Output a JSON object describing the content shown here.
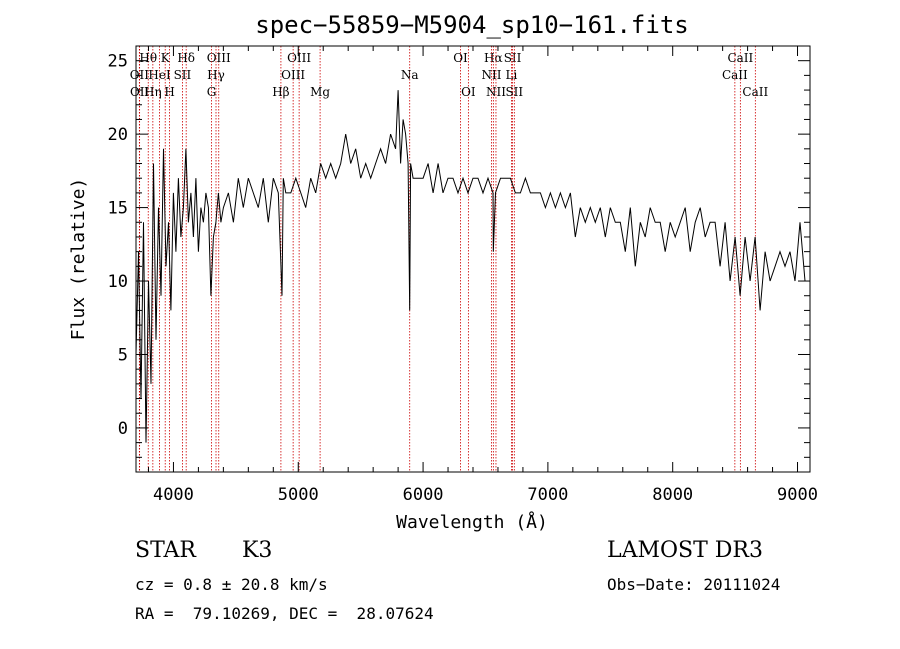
{
  "chart_data": {
    "type": "line",
    "title": "spec−55859−M5904_sp10−161.fits",
    "xlabel": "Wavelength (Å)",
    "ylabel": "Flux (relative)",
    "xlim": [
      3700,
      9100
    ],
    "ylim": [
      -3,
      26
    ],
    "xticks": [
      4000,
      5000,
      6000,
      7000,
      8000,
      9000
    ],
    "yticks": [
      0,
      5,
      10,
      15,
      20,
      25
    ],
    "series": [
      {
        "name": "flux",
        "x": [
          3700,
          3720,
          3740,
          3760,
          3780,
          3800,
          3820,
          3840,
          3860,
          3880,
          3900,
          3920,
          3940,
          3960,
          3980,
          4000,
          4020,
          4040,
          4060,
          4080,
          4100,
          4120,
          4140,
          4160,
          4180,
          4200,
          4220,
          4240,
          4260,
          4280,
          4300,
          4320,
          4340,
          4360,
          4380,
          4400,
          4440,
          4480,
          4520,
          4560,
          4600,
          4640,
          4680,
          4720,
          4760,
          4800,
          4840,
          4870,
          4880,
          4900,
          4940,
          4980,
          5020,
          5060,
          5100,
          5140,
          5180,
          5220,
          5260,
          5300,
          5340,
          5380,
          5420,
          5460,
          5500,
          5540,
          5580,
          5620,
          5660,
          5700,
          5740,
          5780,
          5800,
          5820,
          5840,
          5860,
          5880,
          5893,
          5900,
          5920,
          5960,
          6000,
          6040,
          6080,
          6120,
          6160,
          6200,
          6240,
          6280,
          6320,
          6360,
          6400,
          6440,
          6480,
          6520,
          6560,
          6563,
          6580,
          6620,
          6660,
          6700,
          6740,
          6780,
          6820,
          6860,
          6900,
          6940,
          6980,
          7020,
          7060,
          7100,
          7140,
          7180,
          7220,
          7260,
          7300,
          7340,
          7380,
          7420,
          7460,
          7500,
          7540,
          7580,
          7620,
          7660,
          7700,
          7740,
          7780,
          7820,
          7860,
          7900,
          7940,
          7980,
          8020,
          8060,
          8100,
          8140,
          8180,
          8220,
          8260,
          8300,
          8340,
          8380,
          8420,
          8460,
          8500,
          8540,
          8580,
          8620,
          8660,
          8700,
          8740,
          8780,
          8820,
          8860,
          8900,
          8940,
          8980,
          9020,
          9060
        ],
        "y": [
          5,
          12,
          2,
          14,
          -1,
          10,
          3,
          18,
          6,
          15,
          9,
          19,
          11,
          14,
          8,
          16,
          12,
          17,
          13,
          15,
          19,
          14,
          16,
          13,
          17,
          12,
          15,
          14,
          16,
          15,
          9,
          13,
          14,
          16,
          14,
          15,
          16,
          14,
          17,
          15,
          17,
          16,
          15,
          17,
          14,
          17,
          16,
          9,
          17,
          16,
          16,
          17,
          16,
          15,
          17,
          16,
          18,
          17,
          18,
          17,
          18,
          20,
          18,
          19,
          17,
          18,
          17,
          18,
          19,
          18,
          20,
          19,
          23,
          18,
          21,
          20,
          18,
          8,
          18,
          17,
          17,
          17,
          18,
          16,
          18,
          16,
          17,
          17,
          16,
          17,
          16,
          17,
          17,
          16,
          17,
          16,
          12,
          16,
          17,
          17,
          17,
          16,
          16,
          17,
          16,
          16,
          16,
          15,
          16,
          15,
          16,
          15,
          16,
          13,
          15,
          14,
          15,
          14,
          15,
          13,
          15,
          14,
          14,
          12,
          15,
          11,
          14,
          13,
          15,
          14,
          14,
          12,
          14,
          13,
          14,
          15,
          12,
          14,
          15,
          13,
          14,
          14,
          11,
          14,
          10,
          13,
          9,
          13,
          10,
          13,
          8,
          12,
          10,
          11,
          12,
          11,
          12,
          10,
          14,
          10
        ]
      }
    ],
    "lines": [
      {
        "label": "Hθ",
        "wl": 3798,
        "row": 1
      },
      {
        "label": "OII",
        "wl": 3727,
        "row": 2
      },
      {
        "label": "OII",
        "wl": 3729,
        "row": 3
      },
      {
        "label": "HeI",
        "wl": 3889,
        "row": 2
      },
      {
        "label": "Hη",
        "wl": 3835,
        "row": 3
      },
      {
        "label": "K",
        "wl": 3934,
        "row": 1
      },
      {
        "label": "H",
        "wl": 3969,
        "row": 3
      },
      {
        "label": "Hδ",
        "wl": 4102,
        "row": 1
      },
      {
        "label": "SII",
        "wl": 4072,
        "row": 2
      },
      {
        "label": "OIII",
        "wl": 4363,
        "row": 1
      },
      {
        "label": "Hγ",
        "wl": 4341,
        "row": 2
      },
      {
        "label": "G",
        "wl": 4305,
        "row": 3
      },
      {
        "label": "Hβ",
        "wl": 4861,
        "row": 3
      },
      {
        "label": "OIII",
        "wl": 5007,
        "row": 1
      },
      {
        "label": "OIII",
        "wl": 4959,
        "row": 2
      },
      {
        "label": "Mg",
        "wl": 5175,
        "row": 3
      },
      {
        "label": "Na",
        "wl": 5893,
        "row": 2
      },
      {
        "label": "OI",
        "wl": 6300,
        "row": 1
      },
      {
        "label": "OI",
        "wl": 6363,
        "row": 3
      },
      {
        "label": "Hα",
        "wl": 6563,
        "row": 1
      },
      {
        "label": "NII",
        "wl": 6548,
        "row": 2
      },
      {
        "label": "NII",
        "wl": 6584,
        "row": 3
      },
      {
        "label": "SII",
        "wl": 6717,
        "row": 1
      },
      {
        "label": "Li",
        "wl": 6708,
        "row": 2
      },
      {
        "label": "SII",
        "wl": 6731,
        "row": 3
      },
      {
        "label": "CaII",
        "wl": 8542,
        "row": 1
      },
      {
        "label": "CaII",
        "wl": 8498,
        "row": 2
      },
      {
        "label": "CaII",
        "wl": 8662,
        "row": 3
      }
    ]
  },
  "info": {
    "class": "STAR",
    "subclass": "K3",
    "survey": "LAMOST DR3",
    "cz": "cz = 0.8 ± 20.8 km/s",
    "obs_date": "Obs−Date: 20111024",
    "radec": "RA =  79.10269, DEC =  28.07624"
  },
  "colors": {
    "line": "#000000",
    "marker": "#cc0000"
  }
}
